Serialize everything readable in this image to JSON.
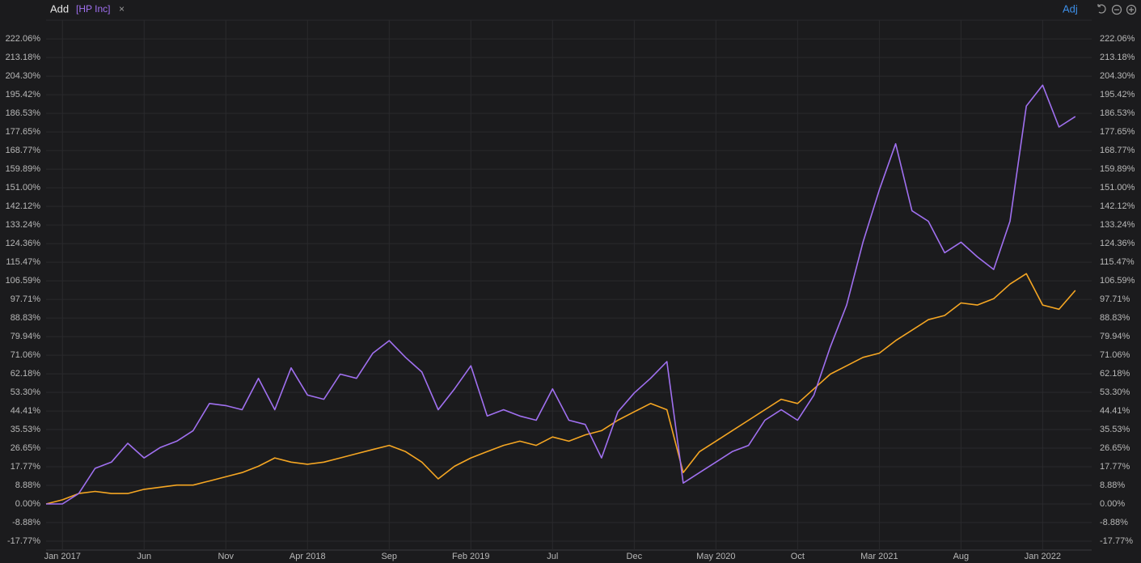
{
  "header": {
    "add": "Add",
    "close": "×",
    "adj": "Adj"
  },
  "chart_data": {
    "type": "line",
    "x": [
      "2016-12",
      "2017-01",
      "2017-02",
      "2017-03",
      "2017-04",
      "2017-05",
      "2017-06",
      "2017-07",
      "2017-08",
      "2017-09",
      "2017-10",
      "2017-11",
      "2017-12",
      "2018-01",
      "2018-02",
      "2018-03",
      "2018-04",
      "2018-05",
      "2018-06",
      "2018-07",
      "2018-08",
      "2018-09",
      "2018-10",
      "2018-11",
      "2018-12",
      "2019-01",
      "2019-02",
      "2019-03",
      "2019-04",
      "2019-05",
      "2019-06",
      "2019-07",
      "2019-08",
      "2019-09",
      "2019-10",
      "2019-11",
      "2019-12",
      "2020-01",
      "2020-02",
      "2020-03",
      "2020-04",
      "2020-05",
      "2020-06",
      "2020-07",
      "2020-08",
      "2020-09",
      "2020-10",
      "2020-11",
      "2020-12",
      "2021-01",
      "2021-02",
      "2021-03",
      "2021-04",
      "2021-05",
      "2021-06",
      "2021-07",
      "2021-08",
      "2021-09",
      "2021-10",
      "2021-11",
      "2021-12",
      "2022-01",
      "2022-02",
      "2022-03"
    ],
    "series": [
      {
        "name": "[HP Inc]",
        "color": "#a070f0",
        "values": [
          0,
          0,
          5,
          17,
          20,
          29,
          22,
          27,
          30,
          35,
          48,
          47,
          45,
          60,
          45,
          65,
          52,
          50,
          62,
          60,
          72,
          78,
          70,
          63,
          45,
          55,
          66,
          42,
          45,
          42,
          40,
          55,
          40,
          38,
          22,
          44,
          53,
          60,
          68,
          10,
          15,
          20,
          25,
          28,
          40,
          45,
          40,
          52,
          75,
          95,
          125,
          150,
          172,
          140,
          135,
          120,
          125,
          118,
          112,
          135,
          190,
          200,
          180,
          185
        ]
      },
      {
        "color": "#f5a623",
        "values": [
          0,
          2,
          5,
          6,
          5,
          5,
          7,
          8,
          9,
          9,
          11,
          13,
          15,
          18,
          22,
          20,
          19,
          20,
          22,
          24,
          26,
          28,
          25,
          20,
          12,
          18,
          22,
          25,
          28,
          30,
          28,
          32,
          30,
          33,
          35,
          40,
          44,
          48,
          45,
          15,
          25,
          30,
          35,
          40,
          45,
          50,
          48,
          55,
          62,
          66,
          70,
          72,
          78,
          83,
          88,
          90,
          96,
          95,
          98,
          105,
          110,
          95,
          93,
          102
        ]
      }
    ],
    "xlim": [
      "2016-12",
      "2022-04"
    ],
    "xticks": [
      {
        "value": "2017-01",
        "label": "Jan 2017"
      },
      {
        "value": "2017-06",
        "label": "Jun"
      },
      {
        "value": "2017-11",
        "label": "Nov"
      },
      {
        "value": "2018-04",
        "label": "Apr 2018"
      },
      {
        "value": "2018-09",
        "label": "Sep"
      },
      {
        "value": "2019-02",
        "label": "Feb 2019"
      },
      {
        "value": "2019-07",
        "label": "Jul"
      },
      {
        "value": "2019-12",
        "label": "Dec"
      },
      {
        "value": "2020-05",
        "label": "May 2020"
      },
      {
        "value": "2020-10",
        "label": "Oct"
      },
      {
        "value": "2021-03",
        "label": "Mar 2021"
      },
      {
        "value": "2021-08",
        "label": "Aug"
      },
      {
        "value": "2022-01",
        "label": "Jan 2022"
      }
    ],
    "ylim": [
      -22.0,
      231.0
    ],
    "yticks": [
      {
        "value": -17.77,
        "label": "-17.77%"
      },
      {
        "value": -8.88,
        "label": "-8.88%"
      },
      {
        "value": 0,
        "label": "0.00%"
      },
      {
        "value": 8.88,
        "label": "8.88%"
      },
      {
        "value": 17.77,
        "label": "17.77%"
      },
      {
        "value": 26.65,
        "label": "26.65%"
      },
      {
        "value": 35.53,
        "label": "35.53%"
      },
      {
        "value": 44.41,
        "label": "44.41%"
      },
      {
        "value": 53.3,
        "label": "53.30%"
      },
      {
        "value": 62.18,
        "label": "62.18%"
      },
      {
        "value": 71.06,
        "label": "71.06%"
      },
      {
        "value": 79.94,
        "label": "79.94%"
      },
      {
        "value": 88.83,
        "label": "88.83%"
      },
      {
        "value": 97.71,
        "label": "97.71%"
      },
      {
        "value": 106.59,
        "label": "106.59%"
      },
      {
        "value": 115.47,
        "label": "115.47%"
      },
      {
        "value": 124.36,
        "label": "124.36%"
      },
      {
        "value": 133.24,
        "label": "133.24%"
      },
      {
        "value": 142.12,
        "label": "142.12%"
      },
      {
        "value": 151.0,
        "label": "151.00%"
      },
      {
        "value": 159.89,
        "label": "159.89%"
      },
      {
        "value": 168.77,
        "label": "168.77%"
      },
      {
        "value": 177.65,
        "label": "177.65%"
      },
      {
        "value": 186.53,
        "label": "186.53%"
      },
      {
        "value": 195.42,
        "label": "195.42%"
      },
      {
        "value": 204.3,
        "label": "204.30%"
      },
      {
        "value": 213.18,
        "label": "213.18%"
      },
      {
        "value": 222.06,
        "label": "222.06%"
      }
    ],
    "grid": true
  }
}
